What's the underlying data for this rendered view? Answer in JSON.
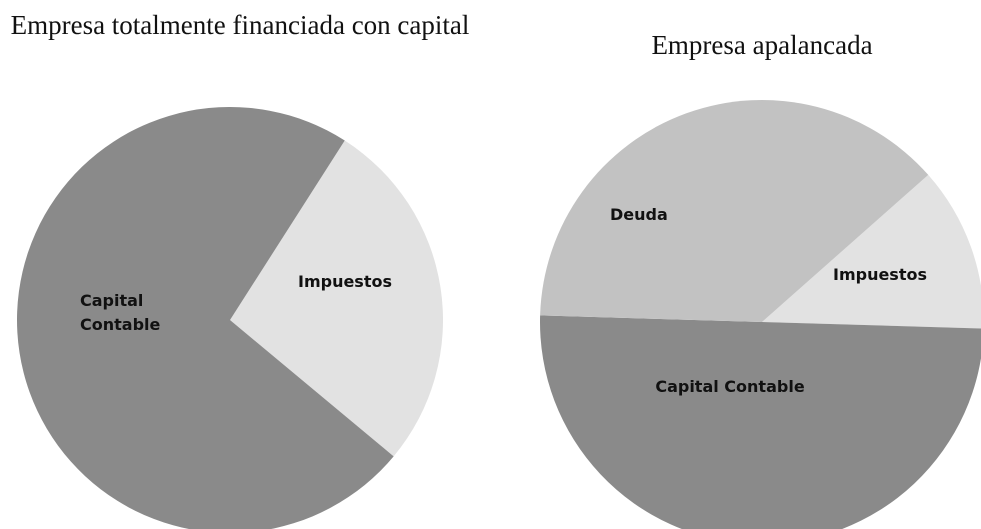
{
  "chart_data": [
    {
      "type": "pie",
      "title": "Empresa totalmente financiada con capital",
      "categories": [
        "Impuestos",
        "Capital Contable"
      ],
      "values": [
        27,
        73
      ],
      "colors": [
        "#e2e2e2",
        "#8a8a8a"
      ]
    },
    {
      "type": "pie",
      "title": "Empresa apalancada",
      "categories": [
        "Impuestos",
        "Capital Contable",
        "Deuda"
      ],
      "values": [
        12,
        50,
        38
      ],
      "colors": [
        "#e2e2e2",
        "#8a8a8a",
        "#c2c2c2"
      ]
    }
  ]
}
